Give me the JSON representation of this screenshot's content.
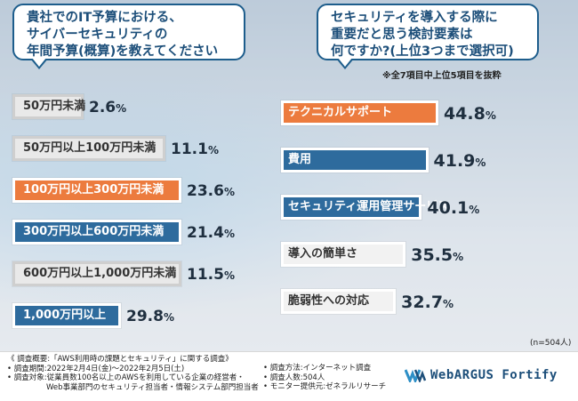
{
  "left_question": {
    "lines": [
      "貴社でのIT予算における、",
      "サイバーセキュリティの",
      "年間予算(概算)を教えてください"
    ]
  },
  "right_question": {
    "lines": [
      "セキュリティを導入する際に",
      "重要だと思う検討要素は",
      "何ですか?(上位3つまで選択可)"
    ]
  },
  "right_note": "※全7項目中上位5項目を抜粋",
  "n_label": "(n=504人)",
  "chart_data": [
    {
      "type": "bar",
      "orientation": "horizontal",
      "title": "貴社でのIT予算における、サイバーセキュリティの年間予算(概算)を教えてください",
      "unit": "%",
      "categories": [
        "50万円未満",
        "50万円以上100万円未満",
        "100万円以上300万円未満",
        "300万円以上600万円未満",
        "600万円以上1,000万円未満",
        "1,000万円以上"
      ],
      "values": [
        2.6,
        11.1,
        23.6,
        21.4,
        11.5,
        29.8
      ],
      "value_labels": [
        "2.6%",
        "11.1%",
        "23.6%",
        "21.4%",
        "11.5%",
        "29.8%"
      ],
      "colors": [
        "#e9e9e9",
        "#e9e9e9",
        "#ec7b3e",
        "#2e6b9d",
        "#e9e9e9",
        "#2e6b9d"
      ],
      "xlim": [
        0,
        100
      ]
    },
    {
      "type": "bar",
      "orientation": "horizontal",
      "title": "セキュリティを導入する際に重要だと思う検討要素は何ですか?(上位3つまで選択可)",
      "unit": "%",
      "categories": [
        "テクニカルサポート",
        "費用",
        "セキュリティ運用管理サービス",
        "導入の簡単さ",
        "脆弱性への対応"
      ],
      "values": [
        44.8,
        41.9,
        40.1,
        35.5,
        32.7
      ],
      "value_labels": [
        "44.8%",
        "41.9%",
        "40.1%",
        "35.5%",
        "32.7%"
      ],
      "colors": [
        "#ec7b3e",
        "#2e6b9d",
        "#2e6b9d",
        "#f2f2f2",
        "#f2f2f2"
      ],
      "xlim": [
        0,
        100
      ]
    }
  ],
  "footer": {
    "left_rows": [
      "《 調査概要:「AWS利用時の課題とセキュリティ」に関する調査》",
      "• 調査期間:2022年2月4日(金)〜2022年2月5日(土)",
      "• 調査対象:従業員数100名以上のAWSを利用している企業の経営者・",
      "Web事業部門のセキュリティ担当者・情報システム部門担当者"
    ],
    "mid_rows": [
      "• 調査方法:インターネット調査",
      "• 調査人数:504人",
      "• モニター提供元:ゼネラルリサーチ"
    ],
    "logo_text": "WebARGUS Fortify"
  },
  "colors": {
    "accent_orange": "#ec7b3e",
    "accent_blue": "#2e6b9d",
    "title_blue": "#1d4f7a",
    "bar_gray": "#e9e9e9"
  }
}
